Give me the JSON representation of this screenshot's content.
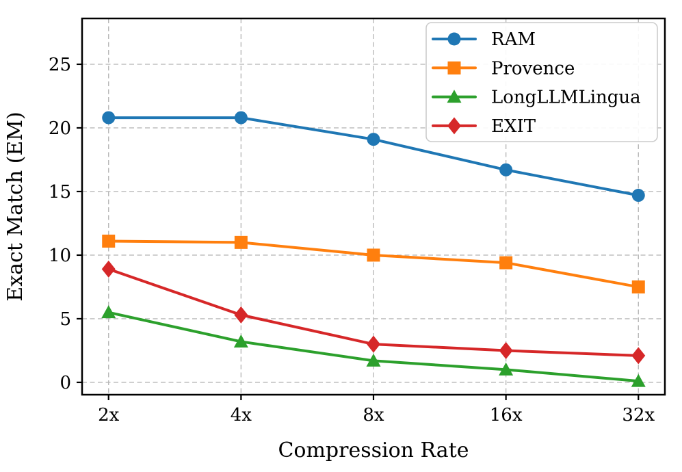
{
  "chart_data": {
    "type": "line",
    "title": "",
    "xlabel": "Compression Rate",
    "ylabel": "Exact Match (EM)",
    "categories": [
      "2x",
      "4x",
      "8x",
      "16x",
      "32x"
    ],
    "yticks": [
      0,
      5,
      10,
      15,
      20,
      25
    ],
    "ylim": [
      -0.97,
      28.6
    ],
    "grid": true,
    "legend_position": "upper right",
    "series": [
      {
        "name": "RAM",
        "marker": "circle",
        "color": "#1f77b4",
        "values": [
          20.8,
          20.8,
          19.1,
          16.7,
          14.7
        ]
      },
      {
        "name": "Provence",
        "marker": "square",
        "color": "#ff7f0e",
        "values": [
          11.1,
          11.0,
          10.0,
          9.4,
          7.5
        ]
      },
      {
        "name": "LongLLMLingua",
        "marker": "triangle",
        "color": "#2ca02c",
        "values": [
          5.5,
          3.2,
          1.7,
          1.0,
          0.1
        ]
      },
      {
        "name": "EXIT",
        "marker": "diamond",
        "color": "#d62728",
        "values": [
          8.9,
          5.3,
          3.0,
          2.5,
          2.1
        ]
      }
    ],
    "colors": {
      "grid": "#b8b8b8",
      "axis": "#000000",
      "text": "#000000",
      "legend_border": "#cccccc",
      "legend_background": "#ffffff"
    }
  }
}
